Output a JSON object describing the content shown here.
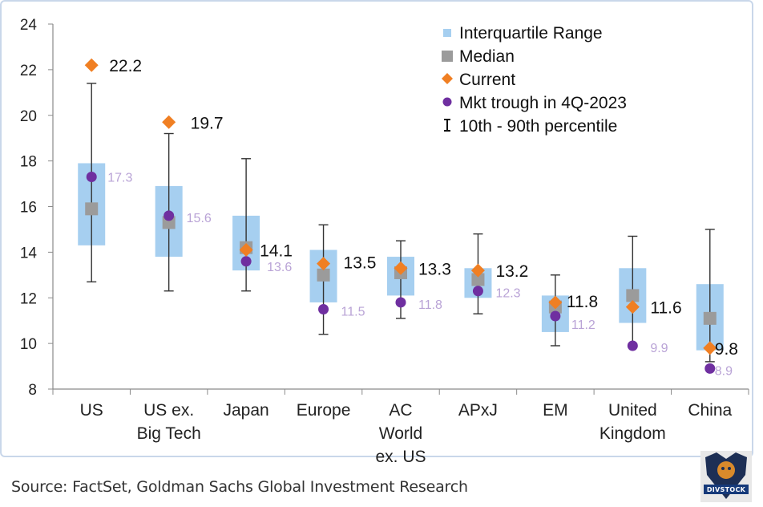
{
  "source_text": "Source: FactSet, Goldman Sachs Global Investment Research",
  "logo": {
    "icon": "lion-shield-icon",
    "text": "DIVSTOCK"
  },
  "colors": {
    "iqr": "#a6cff0",
    "median": "#9b9b9b",
    "current": "#f07f23",
    "trough": "#6f2fa0",
    "trough_label": "#b9a3d6",
    "whisker": "#333333"
  },
  "chart_data": {
    "type": "box",
    "title": "",
    "xlabel": "",
    "ylabel": "",
    "ylim": [
      8,
      24
    ],
    "yticks": [
      8,
      10,
      12,
      14,
      16,
      18,
      20,
      22,
      24
    ],
    "grid": false,
    "legend_position": "top-right",
    "legend": [
      {
        "key": "iqr",
        "label": "Interquartile Range"
      },
      {
        "key": "median",
        "label": "Median"
      },
      {
        "key": "current",
        "label": "Current"
      },
      {
        "key": "trough",
        "label": "Mkt trough in 4Q-2023"
      },
      {
        "key": "whisker",
        "label": "10th - 90th percentile"
      }
    ],
    "categories": [
      {
        "label": [
          "US"
        ],
        "p10": 12.7,
        "q1": 14.3,
        "median": 15.9,
        "q3": 17.9,
        "p90": 21.4,
        "current": 22.2,
        "current_label": "22.2",
        "trough": 17.3,
        "trough_label": "17.3"
      },
      {
        "label": [
          "US ex.",
          "Big Tech"
        ],
        "p10": 12.3,
        "q1": 13.8,
        "median": 15.3,
        "q3": 16.9,
        "p90": 19.2,
        "current": 19.7,
        "current_label": "19.7",
        "trough": 15.6,
        "trough_label": "15.6"
      },
      {
        "label": [
          "Japan"
        ],
        "p10": 12.3,
        "q1": 13.2,
        "median": 14.2,
        "q3": 15.6,
        "p90": 18.1,
        "current": 14.1,
        "current_label": "14.1",
        "trough": 13.6,
        "trough_label": "13.6"
      },
      {
        "label": [
          "Europe"
        ],
        "p10": 10.4,
        "q1": 11.8,
        "median": 13.0,
        "q3": 14.1,
        "p90": 15.2,
        "current": 13.5,
        "current_label": "13.5",
        "trough": 11.5,
        "trough_label": "11.5"
      },
      {
        "label": [
          "AC",
          "World",
          "ex. US"
        ],
        "p10": 11.1,
        "q1": 12.1,
        "median": 13.1,
        "q3": 13.8,
        "p90": 14.5,
        "current": 13.3,
        "current_label": "13.3",
        "trough": 11.8,
        "trough_label": "11.8"
      },
      {
        "label": [
          "APxJ"
        ],
        "p10": 11.3,
        "q1": 12.0,
        "median": 12.8,
        "q3": 13.3,
        "p90": 14.8,
        "current": 13.2,
        "current_label": "13.2",
        "trough": 12.3,
        "trough_label": "12.3"
      },
      {
        "label": [
          "EM"
        ],
        "p10": 9.9,
        "q1": 10.5,
        "median": 11.6,
        "q3": 12.1,
        "p90": 13.0,
        "current": 11.8,
        "current_label": "11.8",
        "trough": 11.2,
        "trough_label": "11.2"
      },
      {
        "label": [
          "United",
          "Kingdom"
        ],
        "p10": 9.9,
        "q1": 10.9,
        "median": 12.1,
        "q3": 13.3,
        "p90": 14.7,
        "current": 11.6,
        "current_label": "11.6",
        "trough": 9.9,
        "trough_label": "9.9"
      },
      {
        "label": [
          "China"
        ],
        "p10": 9.2,
        "q1": 9.7,
        "median": 11.1,
        "q3": 12.6,
        "p90": 15.0,
        "current": 9.8,
        "current_label": "9.8",
        "trough": 8.9,
        "trough_label": "8.9"
      }
    ]
  }
}
